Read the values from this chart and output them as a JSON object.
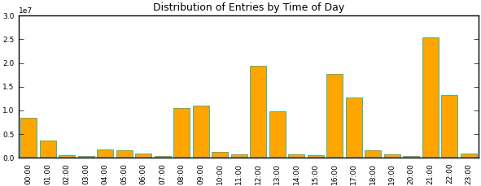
{
  "title": "Distribution of Entries by Time of Day",
  "hours": [
    "00:00",
    "01:00",
    "02:00",
    "03:00",
    "04:00",
    "05:00",
    "06:00",
    "07:00",
    "08:00",
    "09:00",
    "10:00",
    "11:00",
    "12:00",
    "13:00",
    "14:00",
    "15:00",
    "16:00",
    "17:00",
    "18:00",
    "19:00",
    "20:00",
    "21:00",
    "22:00",
    "23:00"
  ],
  "values": [
    8500000,
    3700000,
    600000,
    400000,
    1700000,
    1600000,
    900000,
    300000,
    10500000,
    11000000,
    1200000,
    700000,
    19500000,
    9800000,
    700000,
    500000,
    17700000,
    12800000,
    1600000,
    700000,
    300000,
    25500000,
    13200000,
    900000
  ],
  "bar_color": "#FFA500",
  "edge_color": "#20B2AA",
  "ylim": [
    0,
    30000000
  ],
  "title_fontsize": 9,
  "tick_fontsize": 6.5,
  "bg_color": "#ffffff"
}
